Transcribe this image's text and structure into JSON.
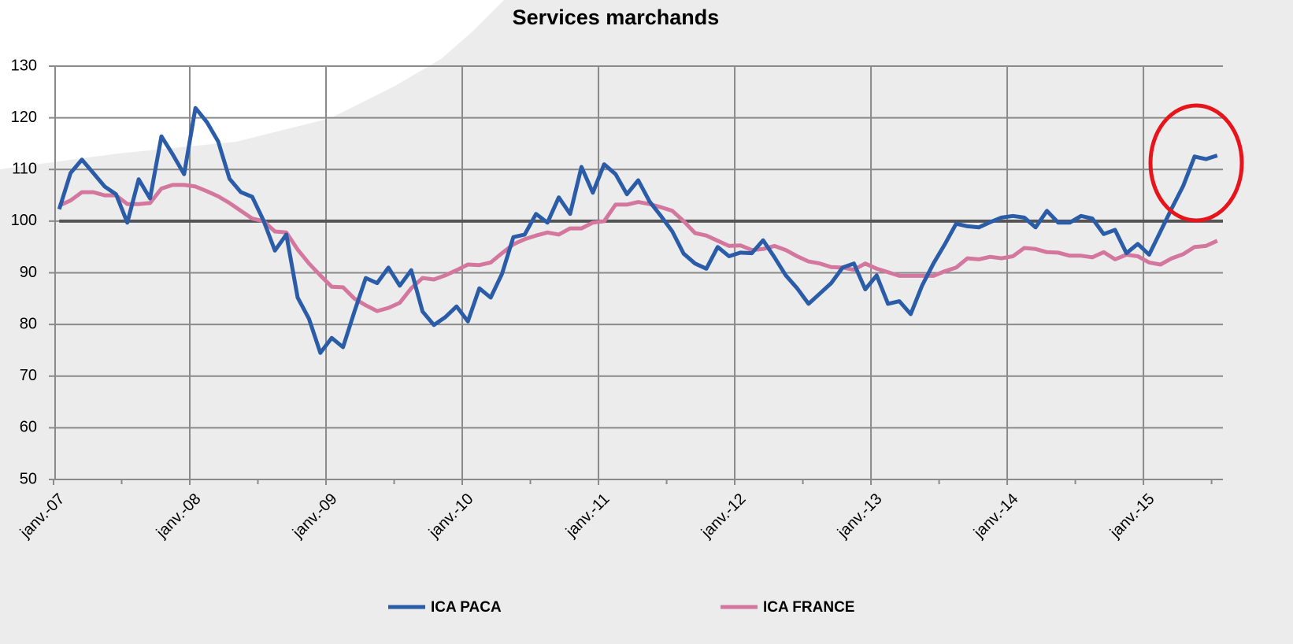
{
  "chart_data": {
    "type": "line",
    "title": "Services marchands",
    "categories": [
      "janv.-07",
      null,
      null,
      null,
      null,
      null,
      null,
      null,
      null,
      null,
      null,
      null,
      "janv.-08",
      null,
      null,
      null,
      null,
      null,
      null,
      null,
      null,
      null,
      null,
      null,
      "janv.-09",
      null,
      null,
      null,
      null,
      null,
      null,
      null,
      null,
      null,
      null,
      null,
      "janv.-10",
      null,
      null,
      null,
      null,
      null,
      null,
      null,
      null,
      null,
      null,
      null,
      "janv.-11",
      null,
      null,
      null,
      null,
      null,
      null,
      null,
      null,
      null,
      null,
      null,
      "janv.-12",
      null,
      null,
      null,
      null,
      null,
      null,
      null,
      null,
      null,
      null,
      null,
      "janv.-13",
      null,
      null,
      null,
      null,
      null,
      null,
      null,
      null,
      null,
      null,
      null,
      "janv.-14",
      null,
      null,
      null,
      null,
      null,
      null,
      null,
      null,
      null,
      null,
      null,
      "janv.-15",
      null,
      null,
      null,
      null,
      null,
      null
    ],
    "series": [
      {
        "name": "ICA PACA",
        "color": "#2a5ca8",
        "values": [
          102.3,
          109.3,
          111.9,
          109.3,
          106.7,
          105.2,
          99.7,
          108.1,
          104.4,
          116.4,
          112.9,
          109.1,
          121.9,
          119.2,
          115.4,
          108.2,
          105.6,
          104.7,
          100.1,
          94.3,
          97.4,
          85.2,
          81.1,
          74.5,
          77.4,
          75.6,
          82.5,
          89.0,
          88.0,
          91.0,
          87.5,
          90.5,
          82.5,
          79.9,
          81.4,
          83.5,
          80.6,
          87.0,
          85.2,
          89.8,
          96.9,
          97.4,
          101.4,
          99.7,
          104.6,
          101.4,
          110.5,
          105.5,
          111.0,
          109.1,
          105.2,
          107.9,
          103.8,
          101.0,
          98.0,
          93.7,
          91.8,
          90.8,
          95.0,
          93.2,
          93.9,
          93.8,
          96.3,
          93.0,
          89.5,
          87.0,
          84.0,
          86.0,
          88.0,
          91.0,
          91.8,
          86.8,
          89.5,
          84.0,
          84.5,
          82.0,
          87.5,
          91.8,
          95.5,
          99.5,
          99.0,
          98.8,
          99.8,
          100.7,
          101.0,
          100.7,
          98.8,
          102.0,
          99.7,
          99.7,
          101.0,
          100.5,
          97.5,
          98.3,
          93.8,
          95.6,
          93.5,
          98.0,
          102.5,
          106.8,
          112.5,
          112.0,
          112.7
        ]
      },
      {
        "name": "ICA FRANCE",
        "color": "#d4779e",
        "values": [
          103.0,
          104.0,
          105.6,
          105.6,
          105.0,
          105.0,
          103.3,
          103.3,
          103.5,
          106.3,
          107.0,
          107.0,
          106.7,
          105.8,
          104.8,
          103.5,
          102.0,
          100.5,
          100.0,
          98.0,
          97.8,
          94.5,
          91.8,
          89.5,
          87.3,
          87.2,
          85.0,
          83.7,
          82.6,
          83.2,
          84.2,
          87.0,
          89.0,
          88.7,
          89.5,
          90.5,
          91.6,
          91.5,
          92.0,
          93.8,
          95.5,
          96.5,
          97.2,
          97.8,
          97.4,
          98.6,
          98.6,
          99.7,
          100.0,
          103.2,
          103.2,
          103.7,
          103.3,
          102.7,
          102.0,
          100.0,
          97.7,
          97.2,
          96.2,
          95.2,
          95.3,
          94.4,
          94.6,
          95.2,
          94.4,
          93.2,
          92.2,
          91.8,
          91.1,
          91.0,
          90.6,
          91.8,
          90.8,
          90.1,
          89.4,
          89.4,
          89.4,
          89.4,
          90.3,
          91.0,
          92.8,
          92.6,
          93.1,
          92.8,
          93.2,
          94.8,
          94.6,
          94.0,
          93.9,
          93.3,
          93.3,
          93.0,
          94.0,
          92.6,
          93.5,
          93.2,
          92.0,
          91.6,
          92.8,
          93.6,
          95.0,
          95.2,
          96.2
        ]
      }
    ],
    "reference_line": 100,
    "ylim": [
      50,
      130
    ],
    "yticks": [
      50,
      60,
      70,
      80,
      90,
      100,
      110,
      120,
      130
    ],
    "grid": true,
    "legend": "bottom"
  }
}
